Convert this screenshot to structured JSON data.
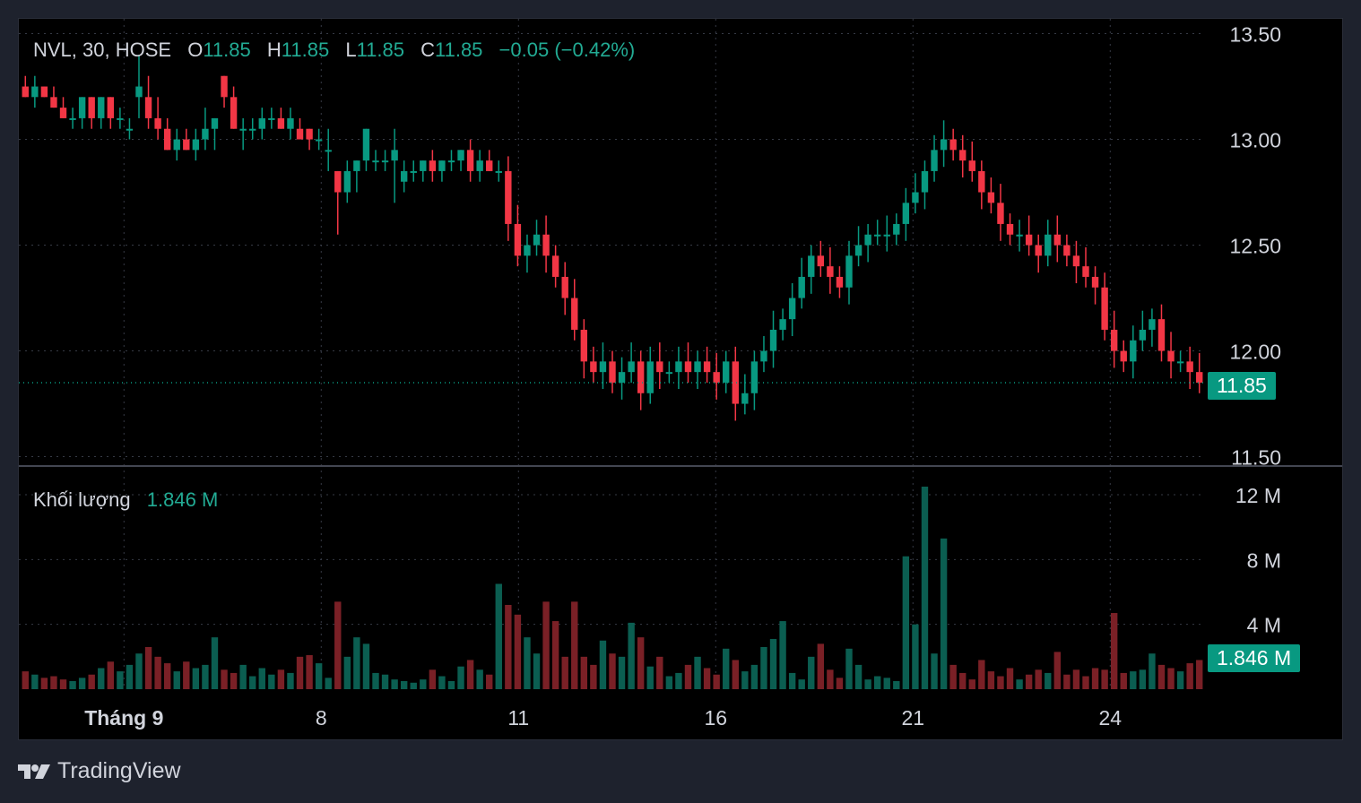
{
  "legend": {
    "symbol": "NVL, 30, HOSE",
    "o_label": "O",
    "o_value": "11.85",
    "h_label": "H",
    "h_value": "11.85",
    "l_label": "L",
    "l_value": "11.85",
    "c_label": "C",
    "c_value": "11.85",
    "change": "−0.05 (−0.42%)"
  },
  "volume_legend": {
    "label": "Khối lượng",
    "value": "1.846 M"
  },
  "price_tag": "11.85",
  "volume_tag": "1.846 M",
  "brand": "TradingView",
  "colors": {
    "up": "#089981",
    "down": "#f23645",
    "up_volume": "#0b5e51",
    "down_volume": "#7a2026",
    "grid": "#363a45",
    "text": "#d1d4dc",
    "background": "#000000"
  },
  "chart_data": {
    "type": "candlestick",
    "symbol": "NVL",
    "interval": "30",
    "exchange": "HOSE",
    "price_axis": {
      "ticks": [
        "11.50",
        "12.00",
        "12.50",
        "13.00",
        "13.50"
      ],
      "range": [
        11.46,
        13.57
      ]
    },
    "volume_axis": {
      "ticks": [
        "4 M",
        "8 M",
        "12 M"
      ],
      "range": [
        0,
        12.5
      ]
    },
    "x_ticks": [
      {
        "label": "Tháng 9",
        "index": 10
      },
      {
        "label": "8",
        "index": 30
      },
      {
        "label": "11",
        "index": 50
      },
      {
        "label": "16",
        "index": 70
      },
      {
        "label": "21",
        "index": 90
      },
      {
        "label": "24",
        "index": 110
      }
    ],
    "last_price": 11.85,
    "last_volume": "1.846 M",
    "candles": [
      [
        13.25,
        13.3,
        13.2,
        13.2,
        1.1
      ],
      [
        13.2,
        13.3,
        13.15,
        13.25,
        0.9
      ],
      [
        13.25,
        13.25,
        13.2,
        13.2,
        0.7
      ],
      [
        13.2,
        13.25,
        13.15,
        13.15,
        0.8
      ],
      [
        13.15,
        13.2,
        13.1,
        13.1,
        0.6
      ],
      [
        13.1,
        13.15,
        13.05,
        13.1,
        0.5
      ],
      [
        13.1,
        13.2,
        13.05,
        13.2,
        0.7
      ],
      [
        13.2,
        13.2,
        13.05,
        13.1,
        0.9
      ],
      [
        13.1,
        13.2,
        13.05,
        13.2,
        1.3
      ],
      [
        13.2,
        13.2,
        13.05,
        13.1,
        1.7
      ],
      [
        13.1,
        13.15,
        13.05,
        13.1,
        1.1
      ],
      [
        13.05,
        13.1,
        13.0,
        13.05,
        1.5
      ],
      [
        13.2,
        13.4,
        13.1,
        13.25,
        2.2
      ],
      [
        13.2,
        13.3,
        13.05,
        13.1,
        2.6
      ],
      [
        13.1,
        13.2,
        13.0,
        13.05,
        2.0
      ],
      [
        13.05,
        13.1,
        12.95,
        12.95,
        1.6
      ],
      [
        12.95,
        13.05,
        12.9,
        13.0,
        1.1
      ],
      [
        13.0,
        13.05,
        12.95,
        12.95,
        1.7
      ],
      [
        12.95,
        13.05,
        12.9,
        13.0,
        1.3
      ],
      [
        13.0,
        13.15,
        12.95,
        13.05,
        1.5
      ],
      [
        13.05,
        13.1,
        12.95,
        13.1,
        3.2
      ],
      [
        13.3,
        13.3,
        13.15,
        13.2,
        1.2
      ],
      [
        13.2,
        13.25,
        13.05,
        13.05,
        1.0
      ],
      [
        13.05,
        13.1,
        12.95,
        13.05,
        1.5
      ],
      [
        13.05,
        13.1,
        13.0,
        13.05,
        0.8
      ],
      [
        13.05,
        13.15,
        13.0,
        13.1,
        1.3
      ],
      [
        13.1,
        13.15,
        13.05,
        13.1,
        0.9
      ],
      [
        13.1,
        13.15,
        13.05,
        13.05,
        1.2
      ],
      [
        13.05,
        13.15,
        13.0,
        13.1,
        1.0
      ],
      [
        13.05,
        13.1,
        13.0,
        13.0,
        2.0
      ],
      [
        13.05,
        13.05,
        12.95,
        13.0,
        2.1
      ],
      [
        13.0,
        13.05,
        12.95,
        13.0,
        1.6
      ],
      [
        12.95,
        13.05,
        12.85,
        12.95,
        0.7
      ],
      [
        12.85,
        12.85,
        12.55,
        12.75,
        5.4
      ],
      [
        12.75,
        12.9,
        12.7,
        12.85,
        2.0
      ],
      [
        12.85,
        12.9,
        12.75,
        12.9,
        3.2
      ],
      [
        12.9,
        13.05,
        12.85,
        13.05,
        2.8
      ],
      [
        12.9,
        12.95,
        12.85,
        12.9,
        1.0
      ],
      [
        12.9,
        12.95,
        12.85,
        12.9,
        0.9
      ],
      [
        12.9,
        13.05,
        12.7,
        12.95,
        0.6
      ],
      [
        12.8,
        12.9,
        12.75,
        12.85,
        0.5
      ],
      [
        12.85,
        12.9,
        12.8,
        12.85,
        0.4
      ],
      [
        12.85,
        12.9,
        12.8,
        12.9,
        0.6
      ],
      [
        12.9,
        12.95,
        12.8,
        12.85,
        1.2
      ],
      [
        12.85,
        12.9,
        12.8,
        12.9,
        0.8
      ],
      [
        12.9,
        12.95,
        12.85,
        12.9,
        0.5
      ],
      [
        12.9,
        12.95,
        12.85,
        12.95,
        1.4
      ],
      [
        12.95,
        13.0,
        12.8,
        12.85,
        1.8
      ],
      [
        12.85,
        12.95,
        12.8,
        12.9,
        1.2
      ],
      [
        12.9,
        12.95,
        12.85,
        12.85,
        0.9
      ]
    ]
  }
}
